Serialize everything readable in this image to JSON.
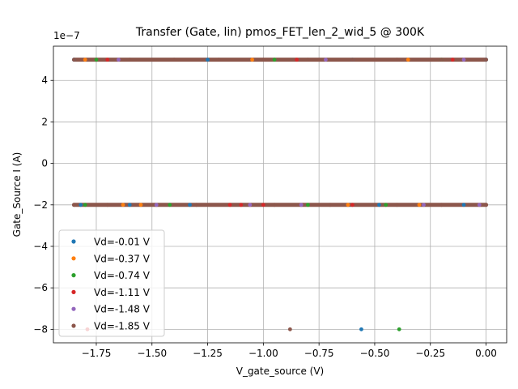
{
  "chart_data": {
    "type": "scatter",
    "title": "Transfer (Gate, lin) pmos_FET_len_2_wid_5 @ 300K",
    "xlabel": "V_gate_source (V)",
    "ylabel": "Gate_Source I (A)",
    "y_multiplier_label": "1e−7",
    "y_scale": 1e-07,
    "xlim": [
      -1.9425,
      0.0925
    ],
    "ylim": [
      -8.65e-07,
      5.65e-07
    ],
    "xticks": [
      -1.75,
      -1.5,
      -1.25,
      -1.0,
      -0.75,
      -0.5,
      -0.25,
      0.0
    ],
    "xtick_labels": [
      "−1.75",
      "−1.50",
      "−1.25",
      "−1.00",
      "−0.75",
      "−0.50",
      "−0.25",
      "0.00"
    ],
    "yticks": [
      4e-07,
      2e-07,
      0,
      -2e-07,
      -4e-07,
      -6e-07,
      -8e-07
    ],
    "ytick_labels": [
      "4",
      "2",
      "0",
      "−2",
      "−4",
      "−6",
      "−8"
    ],
    "grid": true,
    "legend_position": "lower-left",
    "series": [
      {
        "name": "Vd=-0.01 V",
        "color": "#1f77b4",
        "values": [
          {
            "x": -1.85,
            "y": 5e-07
          },
          {
            "x": -1.25,
            "y": 5e-07
          },
          {
            "x": -0.6,
            "y": 5e-07
          },
          {
            "x": 0.0,
            "y": 5e-07
          },
          {
            "x": -1.82,
            "y": -2e-07
          },
          {
            "x": -1.6,
            "y": -2e-07
          },
          {
            "x": -1.33,
            "y": -2e-07
          },
          {
            "x": -0.48,
            "y": -2e-07
          },
          {
            "x": -0.1,
            "y": -2e-07
          },
          {
            "x": -0.56,
            "y": -8e-07
          }
        ]
      },
      {
        "name": "Vd=-0.37 V",
        "color": "#ff7f0e",
        "values": [
          {
            "x": -1.8,
            "y": 5e-07
          },
          {
            "x": -1.05,
            "y": 5e-07
          },
          {
            "x": -0.35,
            "y": 5e-07
          },
          {
            "x": -1.63,
            "y": -2e-07
          },
          {
            "x": -1.55,
            "y": -2e-07
          },
          {
            "x": -0.62,
            "y": -2e-07
          },
          {
            "x": -0.3,
            "y": -2e-07
          }
        ]
      },
      {
        "name": "Vd=-0.74 V",
        "color": "#2ca02c",
        "values": [
          {
            "x": -1.75,
            "y": 5e-07
          },
          {
            "x": -0.95,
            "y": 5e-07
          },
          {
            "x": -0.2,
            "y": 5e-07
          },
          {
            "x": -1.8,
            "y": -2e-07
          },
          {
            "x": -1.42,
            "y": -2e-07
          },
          {
            "x": -0.8,
            "y": -2e-07
          },
          {
            "x": -0.45,
            "y": -2e-07
          },
          {
            "x": -0.39,
            "y": -8e-07
          }
        ]
      },
      {
        "name": "Vd=-1.11 V",
        "color": "#d62728",
        "values": [
          {
            "x": -1.7,
            "y": 5e-07
          },
          {
            "x": -0.85,
            "y": 5e-07
          },
          {
            "x": -0.15,
            "y": 5e-07
          },
          {
            "x": -1.15,
            "y": -2e-07
          },
          {
            "x": -1.1,
            "y": -2e-07
          },
          {
            "x": -1.0,
            "y": -2e-07
          },
          {
            "x": -0.6,
            "y": -2e-07
          },
          {
            "x": -1.79,
            "y": -8e-07
          }
        ]
      },
      {
        "name": "Vd=-1.48 V",
        "color": "#9467bd",
        "values": [
          {
            "x": -1.65,
            "y": 5e-07
          },
          {
            "x": -0.72,
            "y": 5e-07
          },
          {
            "x": -0.1,
            "y": 5e-07
          },
          {
            "x": -1.48,
            "y": -2e-07
          },
          {
            "x": -1.06,
            "y": -2e-07
          },
          {
            "x": -0.83,
            "y": -2e-07
          },
          {
            "x": -0.28,
            "y": -2e-07
          },
          {
            "x": -0.03,
            "y": -2e-07
          }
        ]
      },
      {
        "name": "Vd=-1.85 V",
        "color": "#8c564b",
        "values": [
          {
            "x": -1.85,
            "y": 5e-07
          },
          {
            "x": -1.6,
            "y": 5e-07
          },
          {
            "x": -1.4,
            "y": 5e-07
          },
          {
            "x": -1.2,
            "y": 5e-07
          },
          {
            "x": -1.0,
            "y": 5e-07
          },
          {
            "x": -0.8,
            "y": 5e-07
          },
          {
            "x": -0.6,
            "y": 5e-07
          },
          {
            "x": -0.4,
            "y": 5e-07
          },
          {
            "x": -0.2,
            "y": 5e-07
          },
          {
            "x": 0.0,
            "y": 5e-07
          },
          {
            "x": -1.85,
            "y": -2e-07
          },
          {
            "x": -1.7,
            "y": -2e-07
          },
          {
            "x": -1.3,
            "y": -2e-07
          },
          {
            "x": -0.95,
            "y": -2e-07
          },
          {
            "x": -0.7,
            "y": -2e-07
          },
          {
            "x": -0.4,
            "y": -2e-07
          },
          {
            "x": -0.2,
            "y": -2e-07
          },
          {
            "x": 0.0,
            "y": -2e-07
          },
          {
            "x": -0.88,
            "y": -8e-07
          }
        ]
      }
    ]
  }
}
